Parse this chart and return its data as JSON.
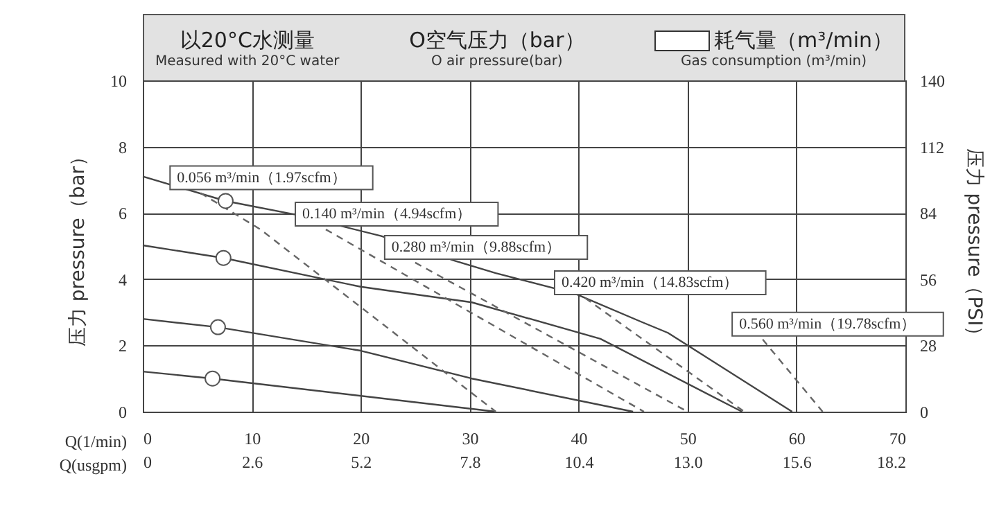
{
  "chart_data": {
    "type": "line",
    "xlabel": "Q(1/min)",
    "ylabel": "压力 pressure（bar）",
    "y2label": "压力 pressure（PSI）",
    "x2label": "Q(usgpm)",
    "xlim": [
      0,
      70
    ],
    "xticks": [
      0,
      10,
      20,
      30,
      40,
      50,
      60,
      70
    ],
    "x2lim": [
      0,
      18.2
    ],
    "x2ticks": [
      0,
      2.6,
      5.2,
      7.8,
      10.4,
      {
        "value": 13,
        "label": "13.0"
      },
      15.6,
      18.2
    ],
    "ylim": [
      0,
      10
    ],
    "yticks": [
      0,
      2,
      4,
      6,
      8,
      10
    ],
    "y2lim": [
      0,
      140
    ],
    "y2ticks": [
      0,
      28,
      56,
      84,
      112,
      140
    ],
    "grid": true,
    "series": [
      {
        "color": "#444444",
        "line_style": "solid",
        "x": [
          0,
          7.6,
          14,
          21.9,
          28.6,
          32.4,
          39.7,
          45.7,
          48.2,
          59.6
        ],
        "values": [
          7.1,
          6.36,
          5.95,
          5.3,
          4.56,
          4.18,
          3.56,
          2.72,
          2.38,
          0
        ]
      },
      {
        "color": "#444444",
        "line_style": "solid",
        "x": [
          0,
          7.4,
          20,
          30.2,
          42,
          55
        ],
        "values": [
          5.02,
          4.64,
          3.77,
          3.3,
          2.2,
          0
        ]
      },
      {
        "color": "#444444",
        "line_style": "solid",
        "x": [
          0,
          6.9,
          20,
          30.2,
          45
        ],
        "values": [
          2.8,
          2.55,
          1.84,
          1.0,
          0
        ]
      },
      {
        "color": "#444444",
        "line_style": "solid",
        "x": [
          0,
          6.4,
          32.4
        ],
        "values": [
          1.21,
          1.0,
          0
        ]
      },
      {
        "name": "0.056 m³/min（1.97scfm）",
        "color": "#666666",
        "line_style": "dashed",
        "x": [
          5.3,
          10.8,
          32.4
        ],
        "values": [
          6.6,
          5.5,
          0
        ]
      },
      {
        "name": "0.140 m³/min（4.94scfm）",
        "color": "#666666",
        "line_style": "dashed",
        "x": [
          16.8,
          46
        ],
        "values": [
          5.5,
          0
        ]
      },
      {
        "name": "0.280 m³/min（9.88scfm）",
        "color": "#666666",
        "line_style": "dashed",
        "x": [
          25,
          50
        ],
        "values": [
          4.5,
          0
        ]
      },
      {
        "name": "0.420 m³/min（14.83scfm）",
        "color": "#666666",
        "line_style": "dashed",
        "x": [
          40.6,
          55.2
        ],
        "values": [
          3.43,
          0
        ]
      },
      {
        "name": "0.560 m³/min（19.78scfm）",
        "color": "#666666",
        "line_style": "dashed",
        "x": [
          56.9,
          62.4
        ],
        "values": [
          2.18,
          0
        ]
      },
      {
        "type": "scatter",
        "marker": "circle",
        "color": "#555555",
        "x": [
          7.6,
          7.4,
          6.9,
          6.4
        ],
        "values": [
          6.36,
          4.64,
          2.55,
          1.0
        ]
      }
    ],
    "annotations": [
      "以20°C水测量",
      "Measured with 20°C water",
      "O空气压力（bar）",
      "O air pressure(bar)",
      "耗气量（m³/min）",
      "Gas consumption (m³/min)"
    ]
  }
}
